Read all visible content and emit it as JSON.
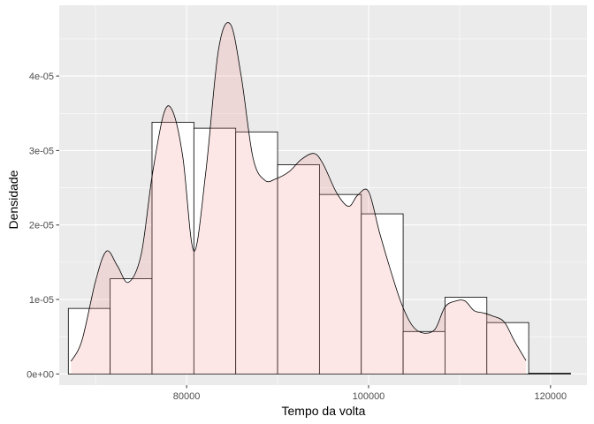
{
  "chart_data": {
    "type": "histogram-density",
    "xlabel": "Tempo da volta",
    "ylabel": "Densidade",
    "xlim": [
      66000,
      124000
    ],
    "ylim": [
      -1.5e-06,
      4.95e-05
    ],
    "x_ticks": [
      {
        "value": 80000,
        "label": "80000"
      },
      {
        "value": 100000,
        "label": "100000"
      },
      {
        "value": 120000,
        "label": "120000"
      }
    ],
    "y_ticks": [
      {
        "value": 0,
        "label": "0e+00"
      },
      {
        "value": 1e-05,
        "label": "1e-05"
      },
      {
        "value": 2e-05,
        "label": "2e-05"
      },
      {
        "value": 3e-05,
        "label": "3e-05"
      },
      {
        "value": 4e-05,
        "label": "4e-05"
      }
    ],
    "bins": [
      {
        "x0": 67000,
        "x1": 71600,
        "density": 8.8e-06
      },
      {
        "x0": 71600,
        "x1": 76200,
        "density": 1.28e-05
      },
      {
        "x0": 76200,
        "x1": 80800,
        "density": 3.38e-05
      },
      {
        "x0": 80800,
        "x1": 85400,
        "density": 3.3e-05
      },
      {
        "x0": 85400,
        "x1": 90000,
        "density": 3.25e-05
      },
      {
        "x0": 90000,
        "x1": 94600,
        "density": 2.81e-05
      },
      {
        "x0": 94600,
        "x1": 99200,
        "density": 2.41e-05
      },
      {
        "x0": 99200,
        "x1": 103800,
        "density": 2.15e-05
      },
      {
        "x0": 103800,
        "x1": 108400,
        "density": 5.7e-06
      },
      {
        "x0": 108400,
        "x1": 113000,
        "density": 1.03e-05
      },
      {
        "x0": 113000,
        "x1": 117600,
        "density": 6.9e-06
      },
      {
        "x0": 117600,
        "x1": 122200,
        "density": 1e-07
      }
    ],
    "density_curve": {
      "x": [
        67300,
        68500,
        70000,
        71200,
        72400,
        73600,
        75000,
        76200,
        77500,
        78500,
        79600,
        80800,
        82100,
        83500,
        84800,
        86000,
        87300,
        88600,
        89800,
        91300,
        92600,
        94000,
        95000,
        96500,
        97800,
        98800,
        100000,
        101200,
        102400,
        103600,
        104800,
        106000,
        107300,
        108400,
        109600,
        110600,
        111600,
        112600,
        113600,
        114900,
        116000,
        117300
      ],
      "y": [
        1.7e-06,
        4.5e-06,
        1.25e-05,
        1.65e-05,
        1.45e-05,
        1.23e-05,
        1.6e-05,
        2.65e-05,
        3.5e-05,
        3.52e-05,
        2.9e-05,
        1.65e-05,
        2.7e-05,
        4.35e-05,
        4.7e-05,
        4e-05,
        2.9e-05,
        2.6e-05,
        2.62e-05,
        2.72e-05,
        2.88e-05,
        2.96e-05,
        2.82e-05,
        2.43e-05,
        2.25e-05,
        2.4e-05,
        2.45e-05,
        1.9e-05,
        1.4e-05,
        9.5e-06,
        6.5e-06,
        5.5e-06,
        6e-06,
        9e-06,
        9.8e-06,
        9.8e-06,
        8.5e-06,
        8.2e-06,
        7.8e-06,
        7e-06,
        4.5e-06,
        1.8e-06
      ]
    },
    "grid": true,
    "colors": {
      "panel_bg": "#ebebeb",
      "grid_major": "#ffffff",
      "bar_fill": "#ffffff",
      "bar_stroke": "#000000",
      "density_fill": "#f08080",
      "density_stroke": "#000000",
      "tick_text": "#4d4d4d"
    }
  }
}
